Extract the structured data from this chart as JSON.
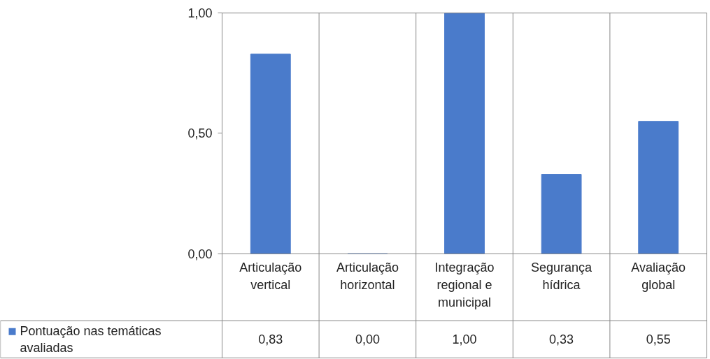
{
  "chart_data": {
    "type": "bar",
    "categories": [
      "Articulação vertical",
      "Articulação horizontal",
      "Integração regional e municipal",
      "Segurança hídrica",
      "Avaliação global"
    ],
    "series": [
      {
        "name": "Pontuação nas temáticas avaliadas",
        "color": "#4a7bcb",
        "values": [
          0.83,
          0.0,
          1.0,
          0.33,
          0.55
        ],
        "value_labels": [
          "0,83",
          "0,00",
          "1,00",
          "0,33",
          "0,55"
        ]
      }
    ],
    "ylim": [
      0,
      1
    ],
    "yticks": [
      {
        "value": 0,
        "label": "0,00"
      },
      {
        "value": 0.5,
        "label": "0,50"
      },
      {
        "value": 1,
        "label": "1,00"
      }
    ],
    "grid": false,
    "legend": "bottom left"
  }
}
